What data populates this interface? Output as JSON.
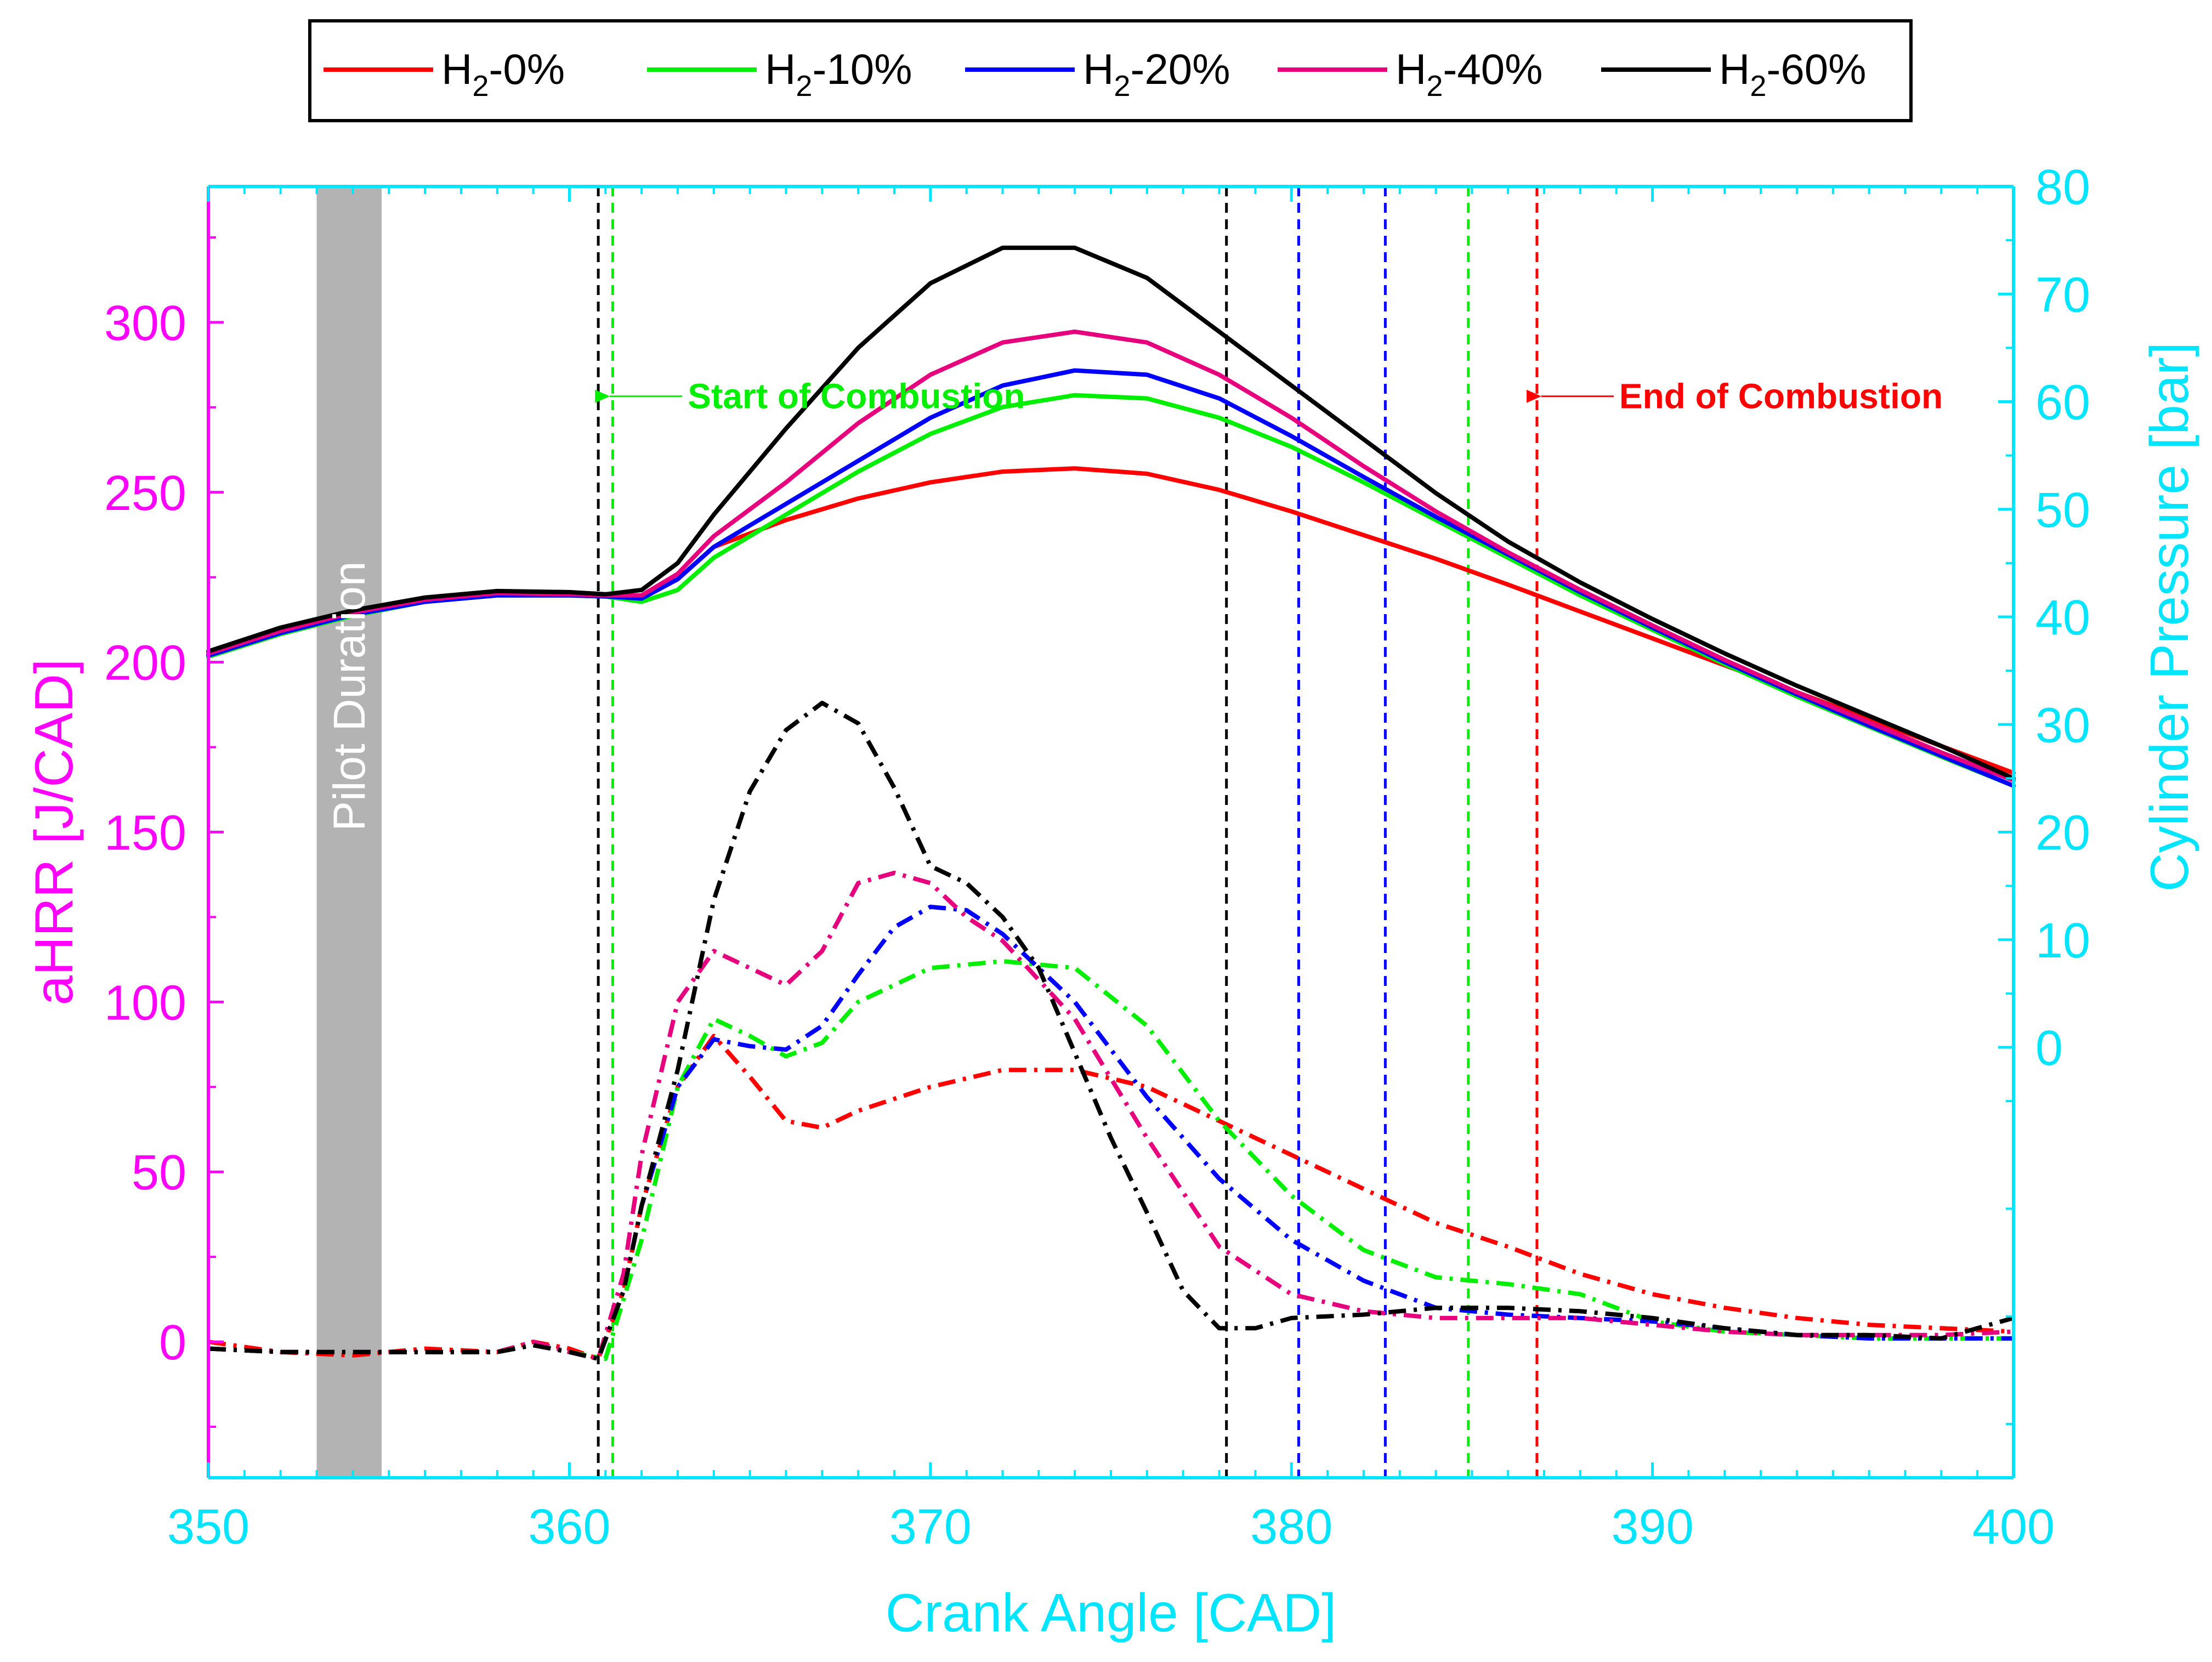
{
  "legend": {
    "position": "top-center",
    "entries": [
      {
        "prefix": "H",
        "sub": "2",
        "suffix": "-0%",
        "color": "#ff0000"
      },
      {
        "prefix": "H",
        "sub": "2",
        "suffix": "-10%",
        "color": "#00ee00"
      },
      {
        "prefix": "H",
        "sub": "2",
        "suffix": "-20%",
        "color": "#0000ff"
      },
      {
        "prefix": "H",
        "sub": "2",
        "suffix": "-40%",
        "color": "#e6007e"
      },
      {
        "prefix": "H",
        "sub": "2",
        "suffix": "-60%",
        "color": "#000000"
      }
    ]
  },
  "annotations": {
    "pilot": "Pilot Duration",
    "start": "Start of Combustion",
    "end": "End of Combustion"
  },
  "colors": {
    "left_axis": "#ff00ff",
    "right_axis": "#00e5ff",
    "pilot_band": "#b3b3b3",
    "start_text": "#00ee00",
    "end_text": "#ff0000"
  },
  "chart_data": {
    "type": "line",
    "xlabel": "Crank Angle [CAD]",
    "ylabel_left": "aHRR [J/CAD]",
    "ylabel_right": "Cylinder Pressure [bar]",
    "xlim": [
      350,
      400
    ],
    "ylim_left": [
      -40,
      340
    ],
    "ylim_right": [
      -40,
      80
    ],
    "xticks": [
      350,
      360,
      370,
      380,
      390,
      400
    ],
    "yticks_left": [
      0,
      50,
      100,
      150,
      200,
      250,
      300
    ],
    "yticks_right": [
      0,
      10,
      20,
      30,
      40,
      50,
      60,
      70,
      80
    ],
    "pilot_duration": [
      353,
      354.8
    ],
    "start_of_combustion_arrow_x": 361,
    "end_of_combustion_arrow_x": 386.8,
    "start_annotation_pressure": 60.5,
    "end_annotation_pressure": 60.5,
    "combustion_markers": [
      {
        "x": 360.8,
        "color": "#000000"
      },
      {
        "x": 361.2,
        "color": "#00ee00"
      },
      {
        "x": 378.2,
        "color": "#000000"
      },
      {
        "x": 380.2,
        "color": "#0000ff"
      },
      {
        "x": 382.6,
        "color": "#0000ff"
      },
      {
        "x": 384.9,
        "color": "#00ee00"
      },
      {
        "x": 386.8,
        "color": "#ff0000"
      }
    ],
    "pressure_series": [
      {
        "name": "H2-0%",
        "color": "#ff0000",
        "x": [
          350,
          352,
          354,
          356,
          358,
          360,
          361,
          362,
          363,
          364,
          366,
          368,
          370,
          372,
          374,
          376,
          378,
          380,
          382,
          384,
          386,
          388,
          390,
          392,
          394,
          396,
          398,
          400
        ],
        "y": [
          36.5,
          38.5,
          40.2,
          41.4,
          42.0,
          42.0,
          41.9,
          41.9,
          43.5,
          46.5,
          49.0,
          51.0,
          52.5,
          53.5,
          53.8,
          53.3,
          51.8,
          49.8,
          47.6,
          45.4,
          43.0,
          40.5,
          38.0,
          35.5,
          33.0,
          30.5,
          28.0,
          25.5
        ]
      },
      {
        "name": "H2-10%",
        "color": "#00ee00",
        "x": [
          350,
          352,
          354,
          356,
          358,
          360,
          361,
          362,
          363,
          364,
          366,
          368,
          370,
          372,
          374,
          376,
          378,
          380,
          382,
          384,
          386,
          388,
          390,
          392,
          394,
          396,
          398,
          400
        ],
        "y": [
          36.3,
          38.4,
          40.1,
          41.4,
          42.0,
          42.0,
          41.9,
          41.4,
          42.5,
          45.5,
          49.5,
          53.5,
          57.0,
          59.5,
          60.6,
          60.3,
          58.5,
          55.8,
          52.5,
          49.0,
          45.5,
          42.0,
          38.8,
          35.6,
          32.6,
          29.8,
          27.0,
          24.3
        ]
      },
      {
        "name": "H2-20%",
        "color": "#0000ff",
        "x": [
          350,
          352,
          354,
          356,
          358,
          360,
          361,
          362,
          363,
          364,
          366,
          368,
          370,
          372,
          374,
          376,
          378,
          380,
          382,
          384,
          386,
          388,
          390,
          392,
          394,
          396,
          398,
          400
        ],
        "y": [
          36.4,
          38.5,
          40.2,
          41.4,
          42.0,
          42.0,
          41.9,
          41.7,
          43.5,
          46.5,
          50.5,
          54.5,
          58.5,
          61.5,
          62.9,
          62.5,
          60.3,
          56.8,
          53.0,
          49.3,
          45.8,
          42.3,
          39.0,
          35.8,
          32.8,
          29.9,
          27.1,
          24.3
        ]
      },
      {
        "name": "H2-40%",
        "color": "#e6007e",
        "x": [
          350,
          352,
          354,
          356,
          358,
          360,
          361,
          362,
          363,
          364,
          366,
          368,
          370,
          372,
          374,
          376,
          378,
          380,
          382,
          384,
          386,
          388,
          390,
          392,
          394,
          396,
          398,
          400
        ],
        "y": [
          36.6,
          38.7,
          40.4,
          41.6,
          42.2,
          42.1,
          42.0,
          42.0,
          44.0,
          47.5,
          52.5,
          58.0,
          62.5,
          65.5,
          66.5,
          65.5,
          62.5,
          58.5,
          54.0,
          49.8,
          46.0,
          42.5,
          39.2,
          36.0,
          33.0,
          30.2,
          27.4,
          24.8
        ]
      },
      {
        "name": "H2-60%",
        "color": "#000000",
        "x": [
          350,
          352,
          354,
          356,
          358,
          360,
          361,
          362,
          363,
          364,
          366,
          368,
          370,
          372,
          374,
          376,
          378,
          380,
          382,
          384,
          386,
          388,
          390,
          392,
          394,
          396,
          398,
          400
        ],
        "y": [
          36.8,
          39.0,
          40.6,
          41.8,
          42.4,
          42.3,
          42.1,
          42.5,
          45.0,
          49.5,
          57.5,
          65.0,
          71.0,
          74.3,
          74.3,
          71.5,
          66.5,
          61.5,
          56.5,
          51.5,
          47.0,
          43.2,
          39.8,
          36.6,
          33.6,
          30.8,
          28.0,
          25.0
        ]
      }
    ],
    "ahrr_series": [
      {
        "name": "H2-0%",
        "color": "#ff0000",
        "x": [
          350,
          352,
          354,
          356,
          358,
          359,
          360,
          360.8,
          361.5,
          362,
          363,
          364,
          365,
          366,
          367,
          368,
          370,
          372,
          374,
          376,
          378,
          380,
          382,
          384,
          386,
          388,
          390,
          392,
          394,
          396,
          398,
          400
        ],
        "y": [
          0,
          -3,
          -4,
          -2,
          -3,
          0,
          -2,
          -5,
          15,
          40,
          75,
          90,
          78,
          65,
          63,
          68,
          75,
          80,
          80,
          75,
          65,
          55,
          45,
          35,
          28,
          20,
          14,
          10,
          7,
          5,
          4,
          3
        ]
      },
      {
        "name": "H2-10%",
        "color": "#00ee00",
        "x": [
          350,
          352,
          354,
          356,
          358,
          359,
          360,
          361,
          362,
          363,
          364,
          365,
          366,
          367,
          368,
          370,
          372,
          374,
          376,
          378,
          380,
          382,
          384,
          386,
          388,
          390,
          392,
          394,
          396,
          398,
          400
        ],
        "y": [
          -2,
          -3,
          -3,
          -3,
          -3,
          -1,
          -3,
          -5,
          30,
          75,
          95,
          90,
          84,
          88,
          100,
          110,
          112,
          110,
          93,
          65,
          43,
          27,
          19,
          17,
          14,
          6,
          3,
          2,
          1,
          1,
          1
        ]
      },
      {
        "name": "H2-20%",
        "color": "#0000ff",
        "x": [
          350,
          352,
          354,
          356,
          358,
          359,
          360,
          360.8,
          361.5,
          362,
          363,
          364,
          365,
          366,
          367,
          368,
          369,
          370,
          371,
          372,
          374,
          376,
          378,
          380,
          382,
          384,
          386,
          388,
          390,
          392,
          394,
          396,
          398,
          400
        ],
        "y": [
          -2,
          -3,
          -3,
          -3,
          -3,
          -1,
          -3,
          -5,
          15,
          40,
          75,
          89,
          87,
          86,
          93,
          108,
          122,
          128,
          127,
          120,
          100,
          72,
          48,
          30,
          18,
          10,
          8,
          7,
          6,
          4,
          2,
          1,
          1,
          1
        ]
      },
      {
        "name": "H2-40%",
        "color": "#e6007e",
        "x": [
          350,
          352,
          354,
          356,
          358,
          359,
          360,
          360.8,
          361.5,
          362,
          363,
          364,
          365,
          366,
          367,
          368,
          369,
          370,
          371,
          372,
          374,
          376,
          378,
          380,
          382,
          384,
          386,
          388,
          390,
          392,
          394,
          396,
          398,
          400
        ],
        "y": [
          -2,
          -3,
          -3,
          -3,
          -3,
          0,
          -3,
          -5,
          20,
          55,
          100,
          115,
          110,
          105,
          115,
          135,
          138,
          135,
          125,
          118,
          95,
          60,
          28,
          14,
          9,
          7,
          7,
          7,
          5,
          3,
          2,
          2,
          2,
          3
        ]
      },
      {
        "name": "H2-60%",
        "color": "#000000",
        "x": [
          350,
          352,
          354,
          356,
          358,
          359,
          360,
          360.8,
          361.5,
          362,
          363,
          364,
          365,
          366,
          367,
          368,
          369,
          370,
          371,
          372,
          373,
          374,
          375,
          376,
          377,
          378,
          379,
          380,
          382,
          384,
          386,
          388,
          390,
          392,
          394,
          396,
          398,
          400
        ],
        "y": [
          -2,
          -3,
          -3,
          -3,
          -3,
          -1,
          -3,
          -5,
          15,
          40,
          80,
          130,
          162,
          180,
          188,
          182,
          163,
          140,
          135,
          125,
          110,
          85,
          60,
          38,
          15,
          4,
          4,
          7,
          8,
          10,
          10,
          9,
          7,
          4,
          2,
          2,
          1,
          7
        ]
      }
    ]
  }
}
